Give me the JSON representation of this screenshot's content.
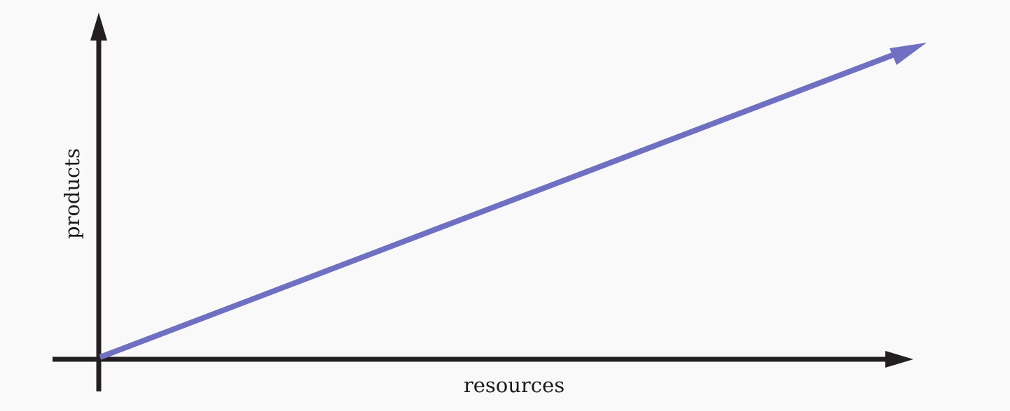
{
  "diagram": {
    "xlabel": "resources",
    "ylabel": "products",
    "colors": {
      "background": "#f9f9f9",
      "axis": "#231f20",
      "trend": "#7070c2"
    }
  }
}
